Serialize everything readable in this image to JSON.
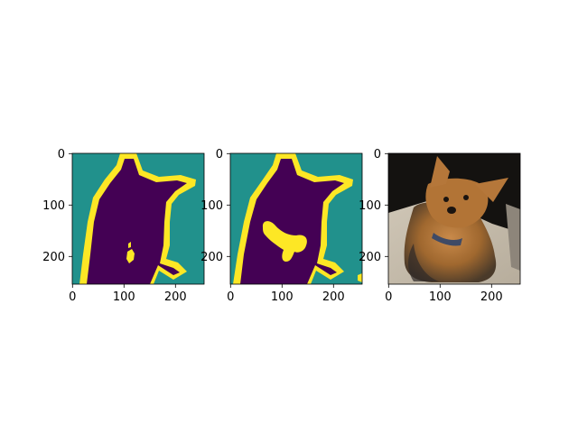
{
  "chart_data": [
    {
      "type": "heatmap",
      "title": "",
      "xlabel": "",
      "ylabel": "",
      "xlim": [
        0,
        255
      ],
      "ylim": [
        255,
        0
      ],
      "x_ticks": [
        "0",
        "100",
        "200"
      ],
      "y_ticks": [
        "0",
        "100",
        "200"
      ],
      "grid": false,
      "colormap": [
        "#440154",
        "#21918c",
        "#fde725"
      ],
      "classes": [
        "foreground",
        "background",
        "boundary"
      ]
    },
    {
      "type": "heatmap",
      "title": "",
      "xlabel": "",
      "ylabel": "",
      "xlim": [
        0,
        255
      ],
      "ylim": [
        255,
        0
      ],
      "x_ticks": [
        "0",
        "100",
        "200"
      ],
      "y_ticks": [
        "0",
        "100",
        "200"
      ],
      "grid": false,
      "colormap": [
        "#440154",
        "#21918c",
        "#fde725"
      ],
      "classes": [
        "foreground",
        "background",
        "boundary"
      ]
    },
    {
      "type": "image",
      "title": "",
      "xlabel": "",
      "ylabel": "",
      "xlim": [
        0,
        255
      ],
      "ylim": [
        255,
        0
      ],
      "x_ticks": [
        "0",
        "100",
        "200"
      ],
      "y_ticks": [
        "0",
        "100",
        "200"
      ],
      "grid": false,
      "subject": "dog-photo"
    }
  ]
}
